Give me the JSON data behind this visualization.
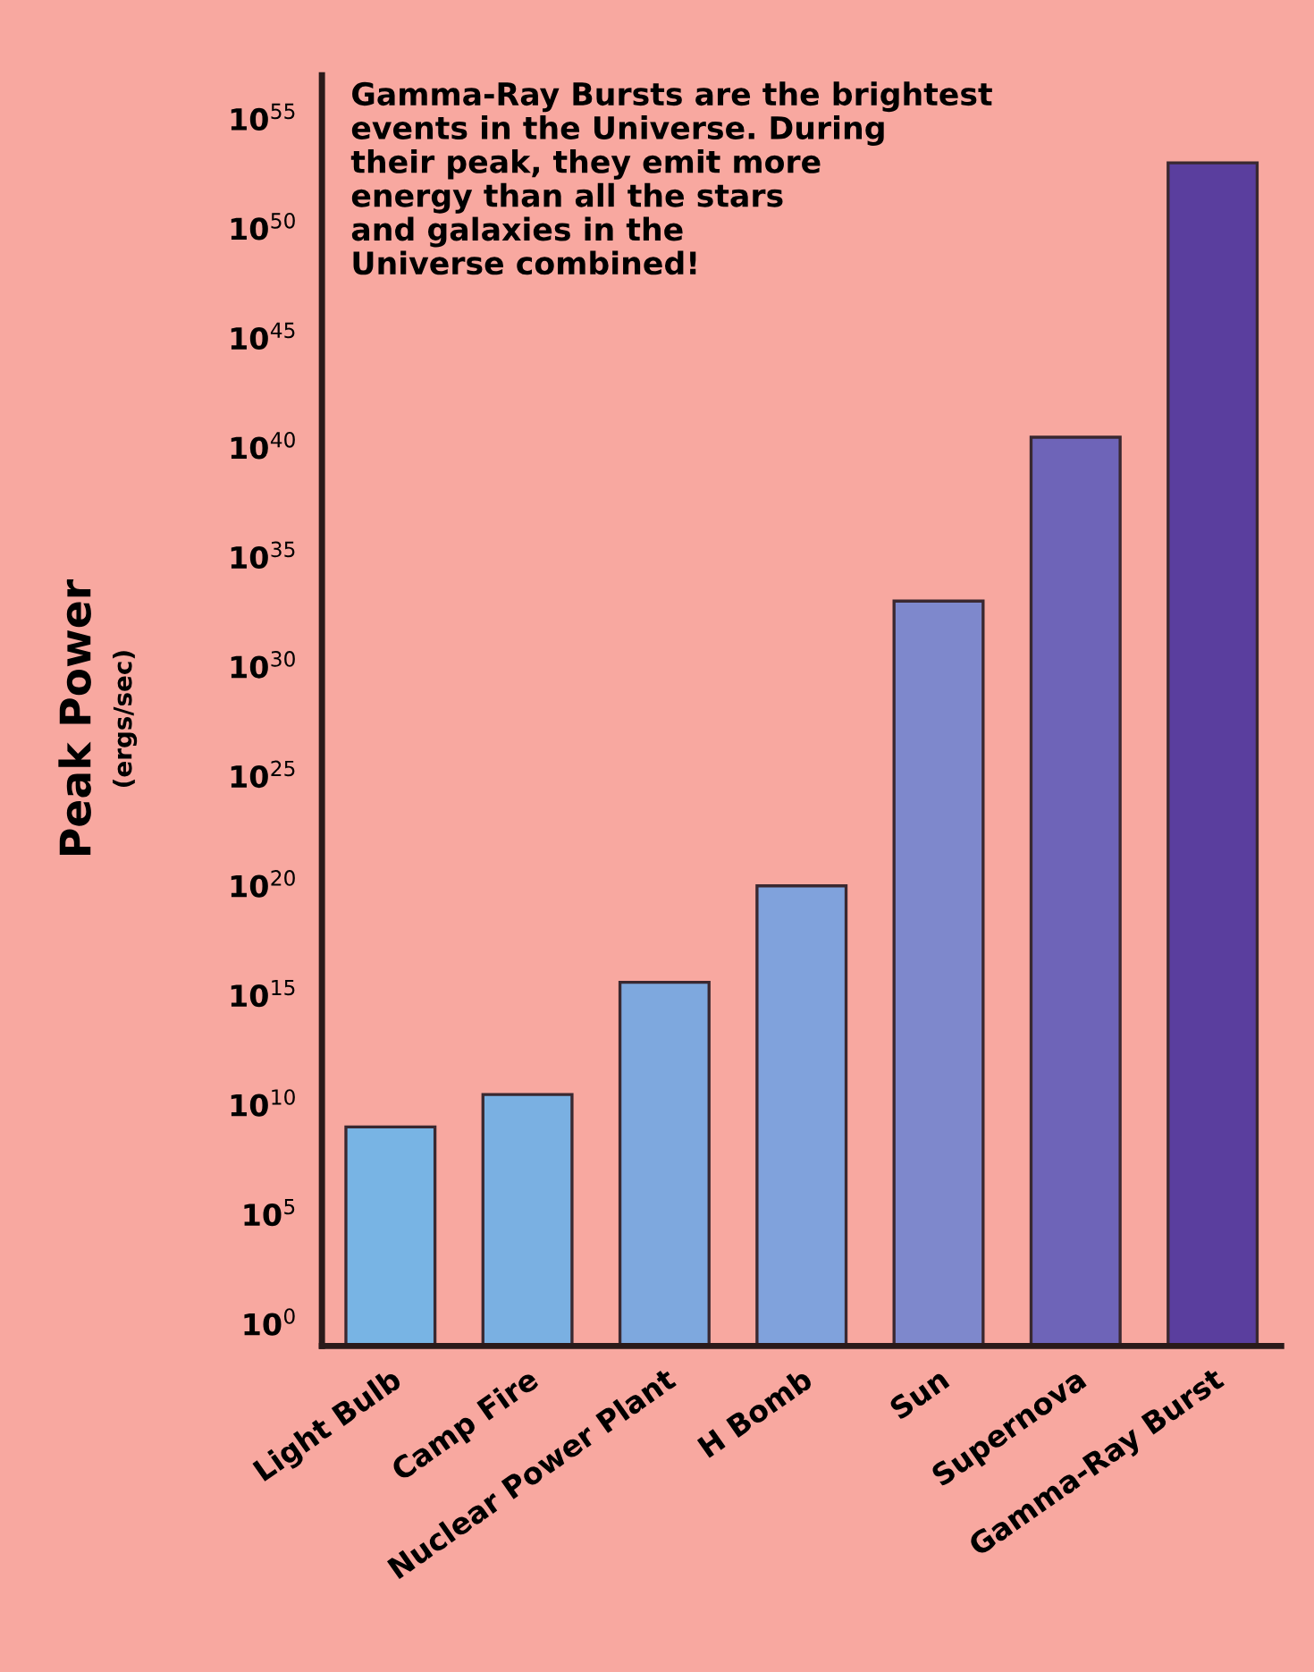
{
  "chart_data": {
    "type": "bar",
    "ylabel": "Peak Power\n(ergs/sec)",
    "categories": [
      "Light Bulb",
      "Camp Fire",
      "Nuclear Power Plant",
      "H Bomb",
      "Sun",
      "Supernova",
      "Gamma-Ray Burst"
    ],
    "values": [
      1000000000.0,
      30000000000.0,
      4000000000000000.0,
      1e+20,
      1e+33,
      3e+40,
      1e+53
    ],
    "colors": [
      "#78b4e4",
      "#7ab0e2",
      "#7ea8de",
      "#80a2dc",
      "#7e88cc",
      "#6e64b8",
      "#5a3e9e"
    ],
    "log": true,
    "ylim": [
      0.1,
      1e+57
    ],
    "yticks": [
      {
        "value": 1,
        "label": "10$^{0}$"
      },
      {
        "value": 100000.0,
        "label": "10$^{5}$"
      },
      {
        "value": 10000000000.0,
        "label": "10$^{10}$"
      },
      {
        "value": 1000000000000000.0,
        "label": "10$^{15}$"
      },
      {
        "value": 1e+20,
        "label": "10$^{20}$"
      },
      {
        "value": 1e+25,
        "label": "10$^{25}$"
      },
      {
        "value": 1e+30,
        "label": "10$^{30}$"
      },
      {
        "value": 1e+35,
        "label": "10$^{35}$"
      },
      {
        "value": 1e+40,
        "label": "10$^{40}$"
      },
      {
        "value": 1e+45,
        "label": "10$^{45}$"
      },
      {
        "value": 1e+50,
        "label": "10$^{50}$"
      },
      {
        "value": 1e+55,
        "label": "10$^{55}$"
      }
    ],
    "annotations": [
      "Gamma-Ray Bursts are the brightest\nevents in the Universe. During\ntheir peak, they emit more\nenergy than all the stars\nand galaxies in the\nUniverse combined!"
    ],
    "grid": false,
    "legend": false
  }
}
